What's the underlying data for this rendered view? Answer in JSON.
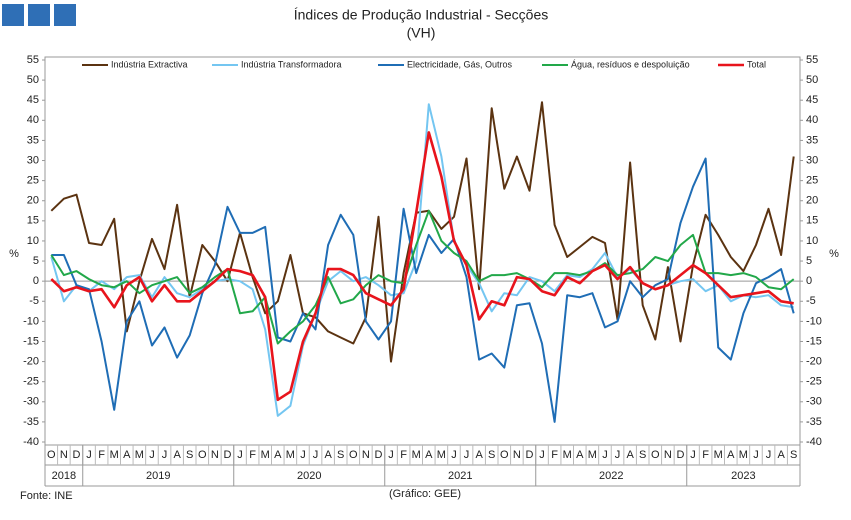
{
  "chart_data": {
    "type": "line",
    "title": "Índices de Produção Industrial - Secções",
    "subtitle": "(VH)",
    "y_label": "%",
    "y2_label": "%",
    "source": "Fonte: INE",
    "note": "(Gráfico: GEE)",
    "categories": [
      "O",
      "N",
      "D",
      "J",
      "F",
      "M",
      "A",
      "M",
      "J",
      "J",
      "A",
      "S",
      "O",
      "N",
      "D",
      "J",
      "F",
      "M",
      "A",
      "M",
      "J",
      "J",
      "A",
      "S",
      "O",
      "N",
      "D",
      "J",
      "F",
      "M",
      "A",
      "M",
      "J",
      "J",
      "A",
      "S",
      "O",
      "N",
      "D",
      "J",
      "F",
      "M",
      "A",
      "M",
      "J",
      "J",
      "A",
      "S",
      "O",
      "N",
      "D",
      "J",
      "F",
      "M",
      "A",
      "M",
      "J",
      "J",
      "A",
      "S"
    ],
    "years": [
      "2018",
      "2019",
      "2020",
      "2021",
      "2022",
      "2023"
    ],
    "ylim": [
      -40,
      55
    ],
    "yticks": [
      -40,
      -35,
      -30,
      -25,
      -20,
      -15,
      -10,
      -5,
      0,
      5,
      10,
      15,
      20,
      25,
      30,
      35,
      40,
      45,
      50,
      55
    ],
    "y2lim": [
      -40,
      55
    ],
    "y2ticks": [
      -40,
      -35,
      -30,
      -25,
      -20,
      -15,
      -10,
      -5,
      0,
      5,
      10,
      15,
      20,
      25,
      30,
      35,
      40,
      45,
      50,
      55
    ],
    "grid": false,
    "legend": "top",
    "series": [
      {
        "name": "Indústria Extractiva",
        "color": "#5b3311",
        "values": [
          17.5,
          20.5,
          21.5,
          9.5,
          9,
          15.5,
          -12.5,
          0,
          10.5,
          3,
          19,
          -4,
          9,
          5,
          0,
          12,
          1,
          -8,
          -5,
          6.5,
          -8,
          -9,
          -12.5,
          -14,
          -15.5,
          -9,
          16,
          -20,
          2,
          17,
          17.5,
          13,
          16,
          30.5,
          -2,
          43,
          23,
          31,
          22.5,
          44.5,
          14,
          6,
          8.5,
          11,
          9.5,
          -9.5,
          29.5,
          -6,
          -14.5,
          3.5,
          -15,
          4,
          16.5,
          11.5,
          6,
          2.5,
          9,
          18,
          6.5,
          31
        ]
      },
      {
        "name": "Indústria Transformadora",
        "color": "#74c6f1",
        "values": [
          6,
          -5,
          -1,
          -2.5,
          0,
          -2,
          1,
          1.5,
          -4,
          1,
          -3,
          -4,
          -2,
          0,
          0.5,
          0,
          -2,
          -12,
          -33.5,
          -31,
          -16,
          -8,
          0,
          2.5,
          0,
          1,
          -1,
          -3.5,
          -3,
          5,
          44,
          31,
          10,
          4,
          -0.5,
          -7.5,
          -3,
          -3.5,
          1,
          0,
          -2.5,
          1.5,
          1,
          3,
          7,
          1,
          3,
          -0.5,
          -2,
          -1,
          0,
          0.5,
          -2.5,
          -1,
          -5,
          -3.5,
          -4,
          -3.5,
          -6,
          -6.5
        ]
      },
      {
        "name": "Electricidade, Gás, Outros",
        "color": "#1f6db5",
        "values": [
          6.5,
          6.5,
          -1,
          -2,
          -15,
          -32,
          -10,
          -5,
          -16,
          -11.5,
          -19,
          -13.5,
          -3,
          4,
          18.5,
          12,
          12,
          13.5,
          -14,
          -15,
          -8,
          -12,
          9,
          16.5,
          11.5,
          -10,
          -14.5,
          -10,
          18,
          2,
          11.5,
          7,
          10.5,
          1,
          -19.5,
          -18,
          -21.5,
          -6,
          -5.5,
          -15.5,
          -35,
          -3.5,
          -4,
          -3,
          -11.5,
          -10,
          0,
          -4,
          -1,
          0.5,
          14.5,
          23.5,
          30.5,
          -16.5,
          -19.5,
          -8,
          -0.5,
          1,
          3,
          -8
        ]
      },
      {
        "name": "Água, resíduos e despoluição",
        "color": "#22a84a",
        "values": [
          6.5,
          1.5,
          2.5,
          0.5,
          -1,
          -1.5,
          0,
          -3,
          -1,
          0,
          1,
          -3,
          -1.5,
          1,
          3,
          -8,
          -7.5,
          -4,
          -15.5,
          -12.5,
          -10,
          -6,
          1,
          -5.5,
          -4.5,
          -1,
          1.5,
          0,
          -0.5,
          9,
          17.5,
          10,
          7,
          5,
          0,
          1.5,
          1.5,
          2,
          0.5,
          -1.5,
          2,
          2,
          1.5,
          2.5,
          4.5,
          1.5,
          2,
          3,
          6,
          5,
          9,
          11.5,
          2,
          2,
          1.5,
          2,
          1,
          -1.5,
          -2,
          0.5
        ]
      },
      {
        "name": "Total",
        "color": "#e8141c",
        "values": [
          0.5,
          -2.5,
          -1.5,
          -2.5,
          -2,
          -6.5,
          -1,
          1,
          -5,
          -1,
          -5,
          -5,
          -2.5,
          0,
          3,
          2.5,
          1.5,
          -4,
          -29.5,
          -27.5,
          -15,
          -8,
          3,
          3,
          1.5,
          -3,
          -4.5,
          -6,
          -2,
          17,
          37,
          26,
          10,
          4,
          -9.5,
          -5,
          -6,
          1,
          0.5,
          -2.5,
          -3.5,
          1,
          -0.5,
          2.5,
          4,
          0.5,
          3.5,
          -0.5,
          -2,
          -1,
          1.5,
          4,
          2,
          -1,
          -4,
          -3.5,
          -3,
          -2.5,
          -5,
          -5.5
        ]
      }
    ]
  }
}
